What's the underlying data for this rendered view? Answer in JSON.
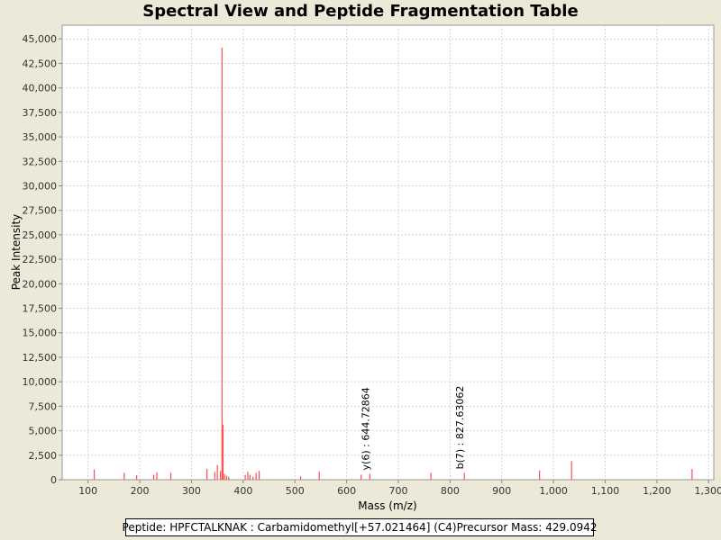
{
  "chart_data": {
    "type": "spectrum",
    "title": "Spectral View and Peptide Fragmentation Table",
    "xlabel": "Mass (m/z)",
    "ylabel": "Peak Intensity",
    "xlim": [
      50,
      1310
    ],
    "ylim": [
      0,
      46400
    ],
    "x_ticks": [
      100,
      200,
      300,
      400,
      500,
      600,
      700,
      800,
      900,
      1000,
      1100,
      1200,
      1300
    ],
    "x_tick_labels": [
      "100",
      "200",
      "300",
      "400",
      "500",
      "600",
      "700",
      "800",
      "900",
      "1,000",
      "1,100",
      "1,200",
      "1,300"
    ],
    "y_ticks": [
      0,
      2500,
      5000,
      7500,
      10000,
      12500,
      15000,
      17500,
      20000,
      22500,
      25000,
      27500,
      30000,
      32500,
      35000,
      37500,
      40000,
      42500,
      45000
    ],
    "y_tick_labels": [
      "0",
      "2,500",
      "5,000",
      "7,500",
      "10,000",
      "12,500",
      "15,000",
      "17,500",
      "20,000",
      "22,500",
      "25,000",
      "27,500",
      "30,000",
      "32,500",
      "35,000",
      "37,500",
      "40,000",
      "42,500",
      "45,000"
    ],
    "grid": true,
    "peak_color": "#ff4d4d",
    "peaks": [
      {
        "x": 112,
        "y": 1050
      },
      {
        "x": 170,
        "y": 700
      },
      {
        "x": 194,
        "y": 450
      },
      {
        "x": 227,
        "y": 500
      },
      {
        "x": 233,
        "y": 750
      },
      {
        "x": 260,
        "y": 700
      },
      {
        "x": 330,
        "y": 1100
      },
      {
        "x": 345,
        "y": 800
      },
      {
        "x": 350,
        "y": 1500
      },
      {
        "x": 356,
        "y": 900
      },
      {
        "x": 359,
        "y": 44100
      },
      {
        "x": 361,
        "y": 5600
      },
      {
        "x": 364,
        "y": 600
      },
      {
        "x": 368,
        "y": 400
      },
      {
        "x": 372,
        "y": 300
      },
      {
        "x": 404,
        "y": 500
      },
      {
        "x": 409,
        "y": 800
      },
      {
        "x": 413,
        "y": 500
      },
      {
        "x": 419,
        "y": 300
      },
      {
        "x": 425,
        "y": 700
      },
      {
        "x": 431,
        "y": 900
      },
      {
        "x": 511,
        "y": 350
      },
      {
        "x": 547,
        "y": 850
      },
      {
        "x": 628,
        "y": 500
      },
      {
        "x": 644.72864,
        "y": 600
      },
      {
        "x": 763,
        "y": 700
      },
      {
        "x": 827.63062,
        "y": 700
      },
      {
        "x": 973,
        "y": 950
      },
      {
        "x": 1035,
        "y": 1900
      },
      {
        "x": 1268,
        "y": 1100
      }
    ],
    "annotations": [
      {
        "x": 644.72864,
        "text": "y(6) : 644.72864"
      },
      {
        "x": 827.63062,
        "text": "b(7) : 827.63062"
      }
    ]
  },
  "footer": {
    "peptide": "Peptide: HPFCTALKNAK : Carbamidomethyl[+57.021464] (C4)",
    "precursor": "Precursor Mass: 429.0942"
  }
}
